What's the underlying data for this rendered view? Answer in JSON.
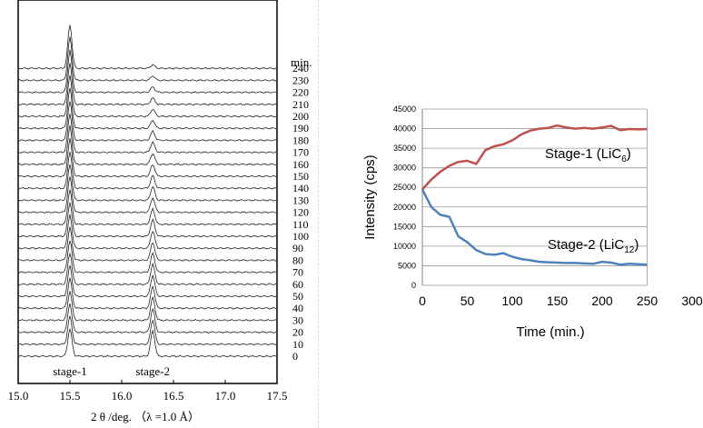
{
  "chart_data": [
    {
      "type": "line",
      "xlabel": "2 θ /deg. （λ =1.0 Å）",
      "x_ticks": [
        "15.0",
        "15.5",
        "16.0",
        "16.5",
        "17.0",
        "17.5"
      ],
      "xlim": [
        15.0,
        17.5
      ],
      "time_unit_label": "min.",
      "time_labels": [
        "240",
        "230",
        "220",
        "210",
        "200",
        "190",
        "180",
        "170",
        "160",
        "150",
        "140",
        "130",
        "120",
        "110",
        "100",
        "90",
        "80",
        "70",
        "60",
        "50",
        "40",
        "30",
        "20",
        "10",
        "0"
      ],
      "peaks": [
        {
          "label": "stage-1",
          "position": 15.5
        },
        {
          "label": "stage-2",
          "position": 16.3
        }
      ]
    },
    {
      "type": "line",
      "xlabel": "Time  (min.)",
      "ylabel": "Intensity  (cps)",
      "xlim": [
        0,
        300
      ],
      "ylim": [
        0,
        45000
      ],
      "x_ticks": [
        "0",
        "50",
        "100",
        "150",
        "200",
        "250",
        "300"
      ],
      "y_ticks": [
        "0",
        "5000",
        "10000",
        "15000",
        "20000",
        "25000",
        "30000",
        "35000",
        "40000",
        "45000"
      ],
      "series": [
        {
          "name": "Stage-1 (LiC6)",
          "label_main": "Stage-1  (LiC",
          "label_sub": "6",
          "label_end": ")",
          "color": "#c0504d",
          "x": [
            0,
            10,
            20,
            30,
            40,
            50,
            60,
            70,
            80,
            90,
            100,
            110,
            120,
            130,
            140,
            150,
            160,
            170,
            180,
            190,
            200,
            210,
            220,
            230,
            240,
            250
          ],
          "y": [
            24500,
            27000,
            29000,
            30500,
            31500,
            31800,
            31000,
            34500,
            35500,
            36000,
            37000,
            38500,
            39500,
            40000,
            40200,
            40800,
            40300,
            40000,
            40200,
            40000,
            40300,
            40700,
            39600,
            39900,
            39800,
            39900
          ]
        },
        {
          "name": "Stage-2 (LiC12)",
          "label_main": "Stage-2  (LiC",
          "label_sub": "12",
          "label_end": ")",
          "color": "#4f81bd",
          "x": [
            0,
            10,
            20,
            30,
            40,
            50,
            60,
            70,
            80,
            90,
            100,
            110,
            120,
            130,
            140,
            150,
            160,
            170,
            180,
            190,
            200,
            210,
            220,
            230,
            240,
            250
          ],
          "y": [
            24500,
            20000,
            18000,
            17500,
            12500,
            11000,
            9000,
            8000,
            7800,
            8200,
            7300,
            6700,
            6400,
            6000,
            5900,
            5800,
            5700,
            5700,
            5600,
            5500,
            6000,
            5800,
            5300,
            5500,
            5400,
            5300
          ]
        }
      ]
    }
  ]
}
